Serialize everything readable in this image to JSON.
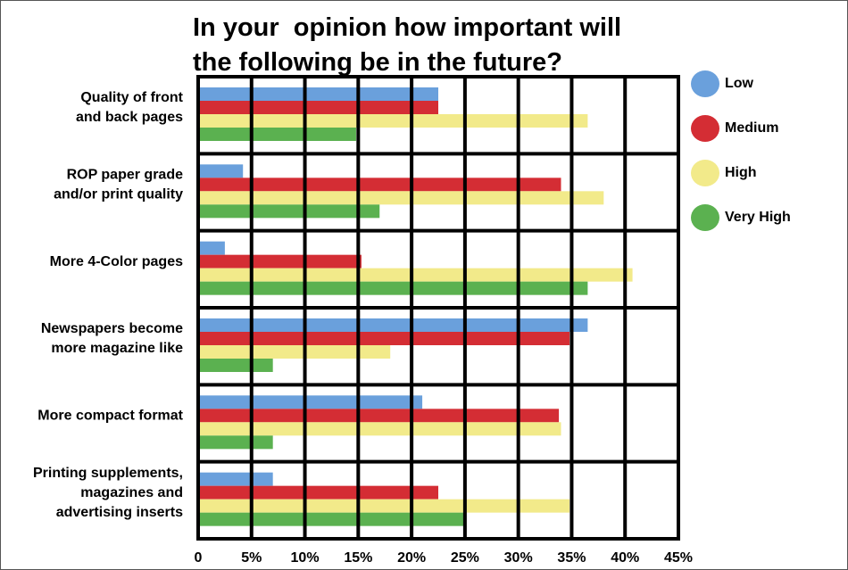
{
  "chart_data": {
    "type": "bar",
    "orientation": "horizontal",
    "title_lines": [
      "In your  opinion how important will",
      "the following be in the future?"
    ],
    "categories": [
      [
        "Quality of front",
        "and back pages"
      ],
      [
        "ROP paper grade",
        "and/or print quality"
      ],
      [
        "More 4-Color pages"
      ],
      [
        "Newspapers become",
        "more magazine like"
      ],
      [
        "More compact format"
      ],
      [
        "Printing supplements,",
        "magazines and",
        "advertising inserts"
      ]
    ],
    "series": [
      {
        "name": "Low",
        "color": "#6aa0dc",
        "values": [
          22.5,
          4.2,
          2.5,
          36.5,
          21,
          7
        ]
      },
      {
        "name": "Medium",
        "color": "#d42d34",
        "values": [
          22.5,
          34,
          15.3,
          34.8,
          33.8,
          22.5
        ]
      },
      {
        "name": "High",
        "color": "#f2ea8a",
        "values": [
          36.5,
          38,
          40.7,
          18,
          34,
          34.8
        ]
      },
      {
        "name": "Very High",
        "color": "#5bb150",
        "values": [
          14.8,
          17,
          36.5,
          7,
          7,
          25
        ]
      }
    ],
    "xlim": [
      0,
      45
    ],
    "x_ticks": [
      "0",
      "5%",
      "10%",
      "15%",
      "20%",
      "25%",
      "30%",
      "35%",
      "40%",
      "45%"
    ],
    "grid": true,
    "legend_position": "right"
  }
}
